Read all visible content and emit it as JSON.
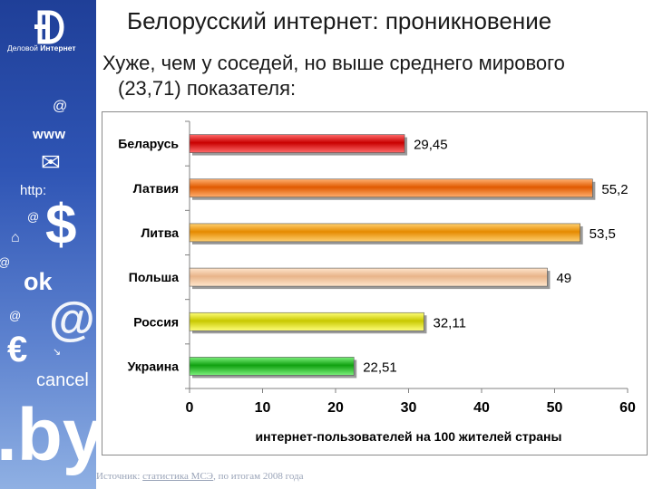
{
  "side_panel": {
    "logo_letter": "Ð",
    "logo_text_a": "Деловой",
    "logo_text_b": "Интернет",
    "symbols": {
      "at1": "@",
      "www": "www",
      "mail": "✉",
      "http": "http:",
      "at2": "@",
      "dollar": "$",
      "home": "⌂",
      "at3": "@",
      "ok": "ok",
      "at4": "@",
      "bigat": "@",
      "euro": "€",
      "dot": "↘",
      "cancel": "cancel",
      "by": ".by"
    }
  },
  "slide": {
    "title": "Белорусский интернет: проникновение",
    "subtitle_line1": "Хуже, чем у соседей, но выше среднего мирового",
    "subtitle_line2": "(23,71) показателя:"
  },
  "source": {
    "prefix": "Источник: ",
    "link": "статистика МСЭ",
    "suffix": ", по итогам 2008 года"
  },
  "colors": {
    "Беларусь": [
      "#ff6a6a",
      "#c80000"
    ],
    "Латвия": [
      "#ffb070",
      "#e05a00"
    ],
    "Литва": [
      "#ffd070",
      "#e58a00"
    ],
    "Польша": [
      "#ffe6cc",
      "#e8b48a"
    ],
    "Россия": [
      "#ffff7a",
      "#c8c800"
    ],
    "Украина": [
      "#7cf07c",
      "#10a010"
    ]
  },
  "chart_data": {
    "type": "bar",
    "orientation": "horizontal",
    "categories": [
      "Беларусь",
      "Латвия",
      "Литва",
      "Польша",
      "Россия",
      "Украина"
    ],
    "values": [
      29.45,
      55.2,
      53.5,
      49,
      32.11,
      22.51
    ],
    "value_labels": [
      "29,45",
      "55,2",
      "53,5",
      "49",
      "32,11",
      "22,51"
    ],
    "xlabel": "интернет-пользователей на 100 жителей страны",
    "xlim": [
      0,
      60
    ],
    "xticks": [
      0,
      10,
      20,
      30,
      40,
      50,
      60
    ],
    "grid": false,
    "legend": "none"
  }
}
